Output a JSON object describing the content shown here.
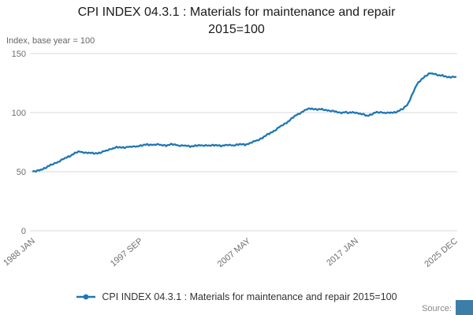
{
  "colors": {
    "line": "#1f77b4",
    "grid": "#d9d9d9",
    "tick_text": "#6e6e6e",
    "logo": "#3d7ea9"
  },
  "source_label": "Source:",
  "chart_data": {
    "type": "line",
    "title": "CPI INDEX 04.3.1 : Materials for maintenance and repair 2015=100",
    "title_line1": "CPI INDEX 04.3.1 : Materials for maintenance and repair",
    "title_line2": "2015=100",
    "y_axis_caption": "Index, base year = 100",
    "xlabel": "",
    "ylabel": "Index, base year = 100",
    "ylim": [
      0,
      150
    ],
    "yticks": [
      0,
      50,
      100,
      150
    ],
    "xlim": [
      1988.0,
      2025.917
    ],
    "xticks": [
      {
        "label": "1988 JAN",
        "year": 1988.0
      },
      {
        "label": "1997 SEP",
        "year": 1997.667
      },
      {
        "label": "2007 MAY",
        "year": 2007.333
      },
      {
        "label": "2017 JAN",
        "year": 2017.0
      },
      {
        "label": "2025 DEC",
        "year": 2025.917
      }
    ],
    "grid": "horizontal",
    "legend_position": "bottom",
    "legend_label": "CPI INDEX 04.3.1 : Materials for maintenance and repair 2015=100",
    "series": [
      {
        "name": "CPI INDEX 04.3.1 : Materials for maintenance and repair 2015=100",
        "points": [
          [
            1988.0,
            50.5
          ],
          [
            1988.25,
            50.0
          ],
          [
            1988.5,
            51.0
          ],
          [
            1989.0,
            53.0
          ],
          [
            1989.5,
            55.0
          ],
          [
            1990.0,
            57.5
          ],
          [
            1990.5,
            59.5
          ],
          [
            1991.0,
            62.0
          ],
          [
            1991.5,
            64.5
          ],
          [
            1992.0,
            66.5
          ],
          [
            1992.3,
            67.0
          ],
          [
            1992.8,
            66.0
          ],
          [
            1993.3,
            65.5
          ],
          [
            1994.0,
            66.0
          ],
          [
            1994.5,
            67.5
          ],
          [
            1995.0,
            69.5
          ],
          [
            1995.5,
            70.5
          ],
          [
            1996.0,
            70.5
          ],
          [
            1996.5,
            71.0
          ],
          [
            1997.0,
            71.0
          ],
          [
            1997.5,
            72.0
          ],
          [
            1998.0,
            72.5
          ],
          [
            1998.5,
            73.0
          ],
          [
            1999.0,
            73.0
          ],
          [
            1999.5,
            72.5
          ],
          [
            2000.0,
            72.5
          ],
          [
            2000.5,
            73.0
          ],
          [
            2001.0,
            72.5
          ],
          [
            2001.5,
            72.0
          ],
          [
            2002.0,
            71.5
          ],
          [
            2002.5,
            72.0
          ],
          [
            2003.0,
            72.0
          ],
          [
            2003.5,
            72.5
          ],
          [
            2004.0,
            72.0
          ],
          [
            2004.5,
            72.5
          ],
          [
            2005.0,
            72.0
          ],
          [
            2005.5,
            72.5
          ],
          [
            2006.0,
            72.5
          ],
          [
            2006.5,
            73.0
          ],
          [
            2007.0,
            73.0
          ],
          [
            2007.4,
            74.0
          ],
          [
            2008.0,
            76.0
          ],
          [
            2008.5,
            78.5
          ],
          [
            2009.0,
            81.0
          ],
          [
            2009.5,
            84.0
          ],
          [
            2010.0,
            87.0
          ],
          [
            2010.5,
            90.0
          ],
          [
            2011.0,
            93.5
          ],
          [
            2011.5,
            97.0
          ],
          [
            2012.0,
            100.0
          ],
          [
            2012.5,
            102.5
          ],
          [
            2013.0,
            103.5
          ],
          [
            2013.3,
            103.0
          ],
          [
            2014.0,
            102.5
          ],
          [
            2014.5,
            102.0
          ],
          [
            2015.0,
            101.0
          ],
          [
            2015.5,
            100.0
          ],
          [
            2016.0,
            100.5
          ],
          [
            2016.3,
            99.5
          ],
          [
            2016.8,
            100.5
          ],
          [
            2017.0,
            100.0
          ],
          [
            2017.5,
            98.5
          ],
          [
            2018.0,
            97.5
          ],
          [
            2018.3,
            98.5
          ],
          [
            2018.8,
            100.0
          ],
          [
            2019.3,
            100.5
          ],
          [
            2019.8,
            99.5
          ],
          [
            2020.3,
            100.0
          ],
          [
            2020.8,
            101.5
          ],
          [
            2021.2,
            103.0
          ],
          [
            2021.6,
            107.0
          ],
          [
            2022.0,
            115.0
          ],
          [
            2022.4,
            123.0
          ],
          [
            2022.8,
            128.0
          ],
          [
            2023.2,
            131.0
          ],
          [
            2023.6,
            133.0
          ],
          [
            2024.0,
            133.0
          ],
          [
            2024.3,
            132.0
          ],
          [
            2024.8,
            131.0
          ],
          [
            2025.2,
            130.0
          ],
          [
            2025.6,
            130.5
          ],
          [
            2025.917,
            130.0
          ]
        ]
      }
    ]
  }
}
